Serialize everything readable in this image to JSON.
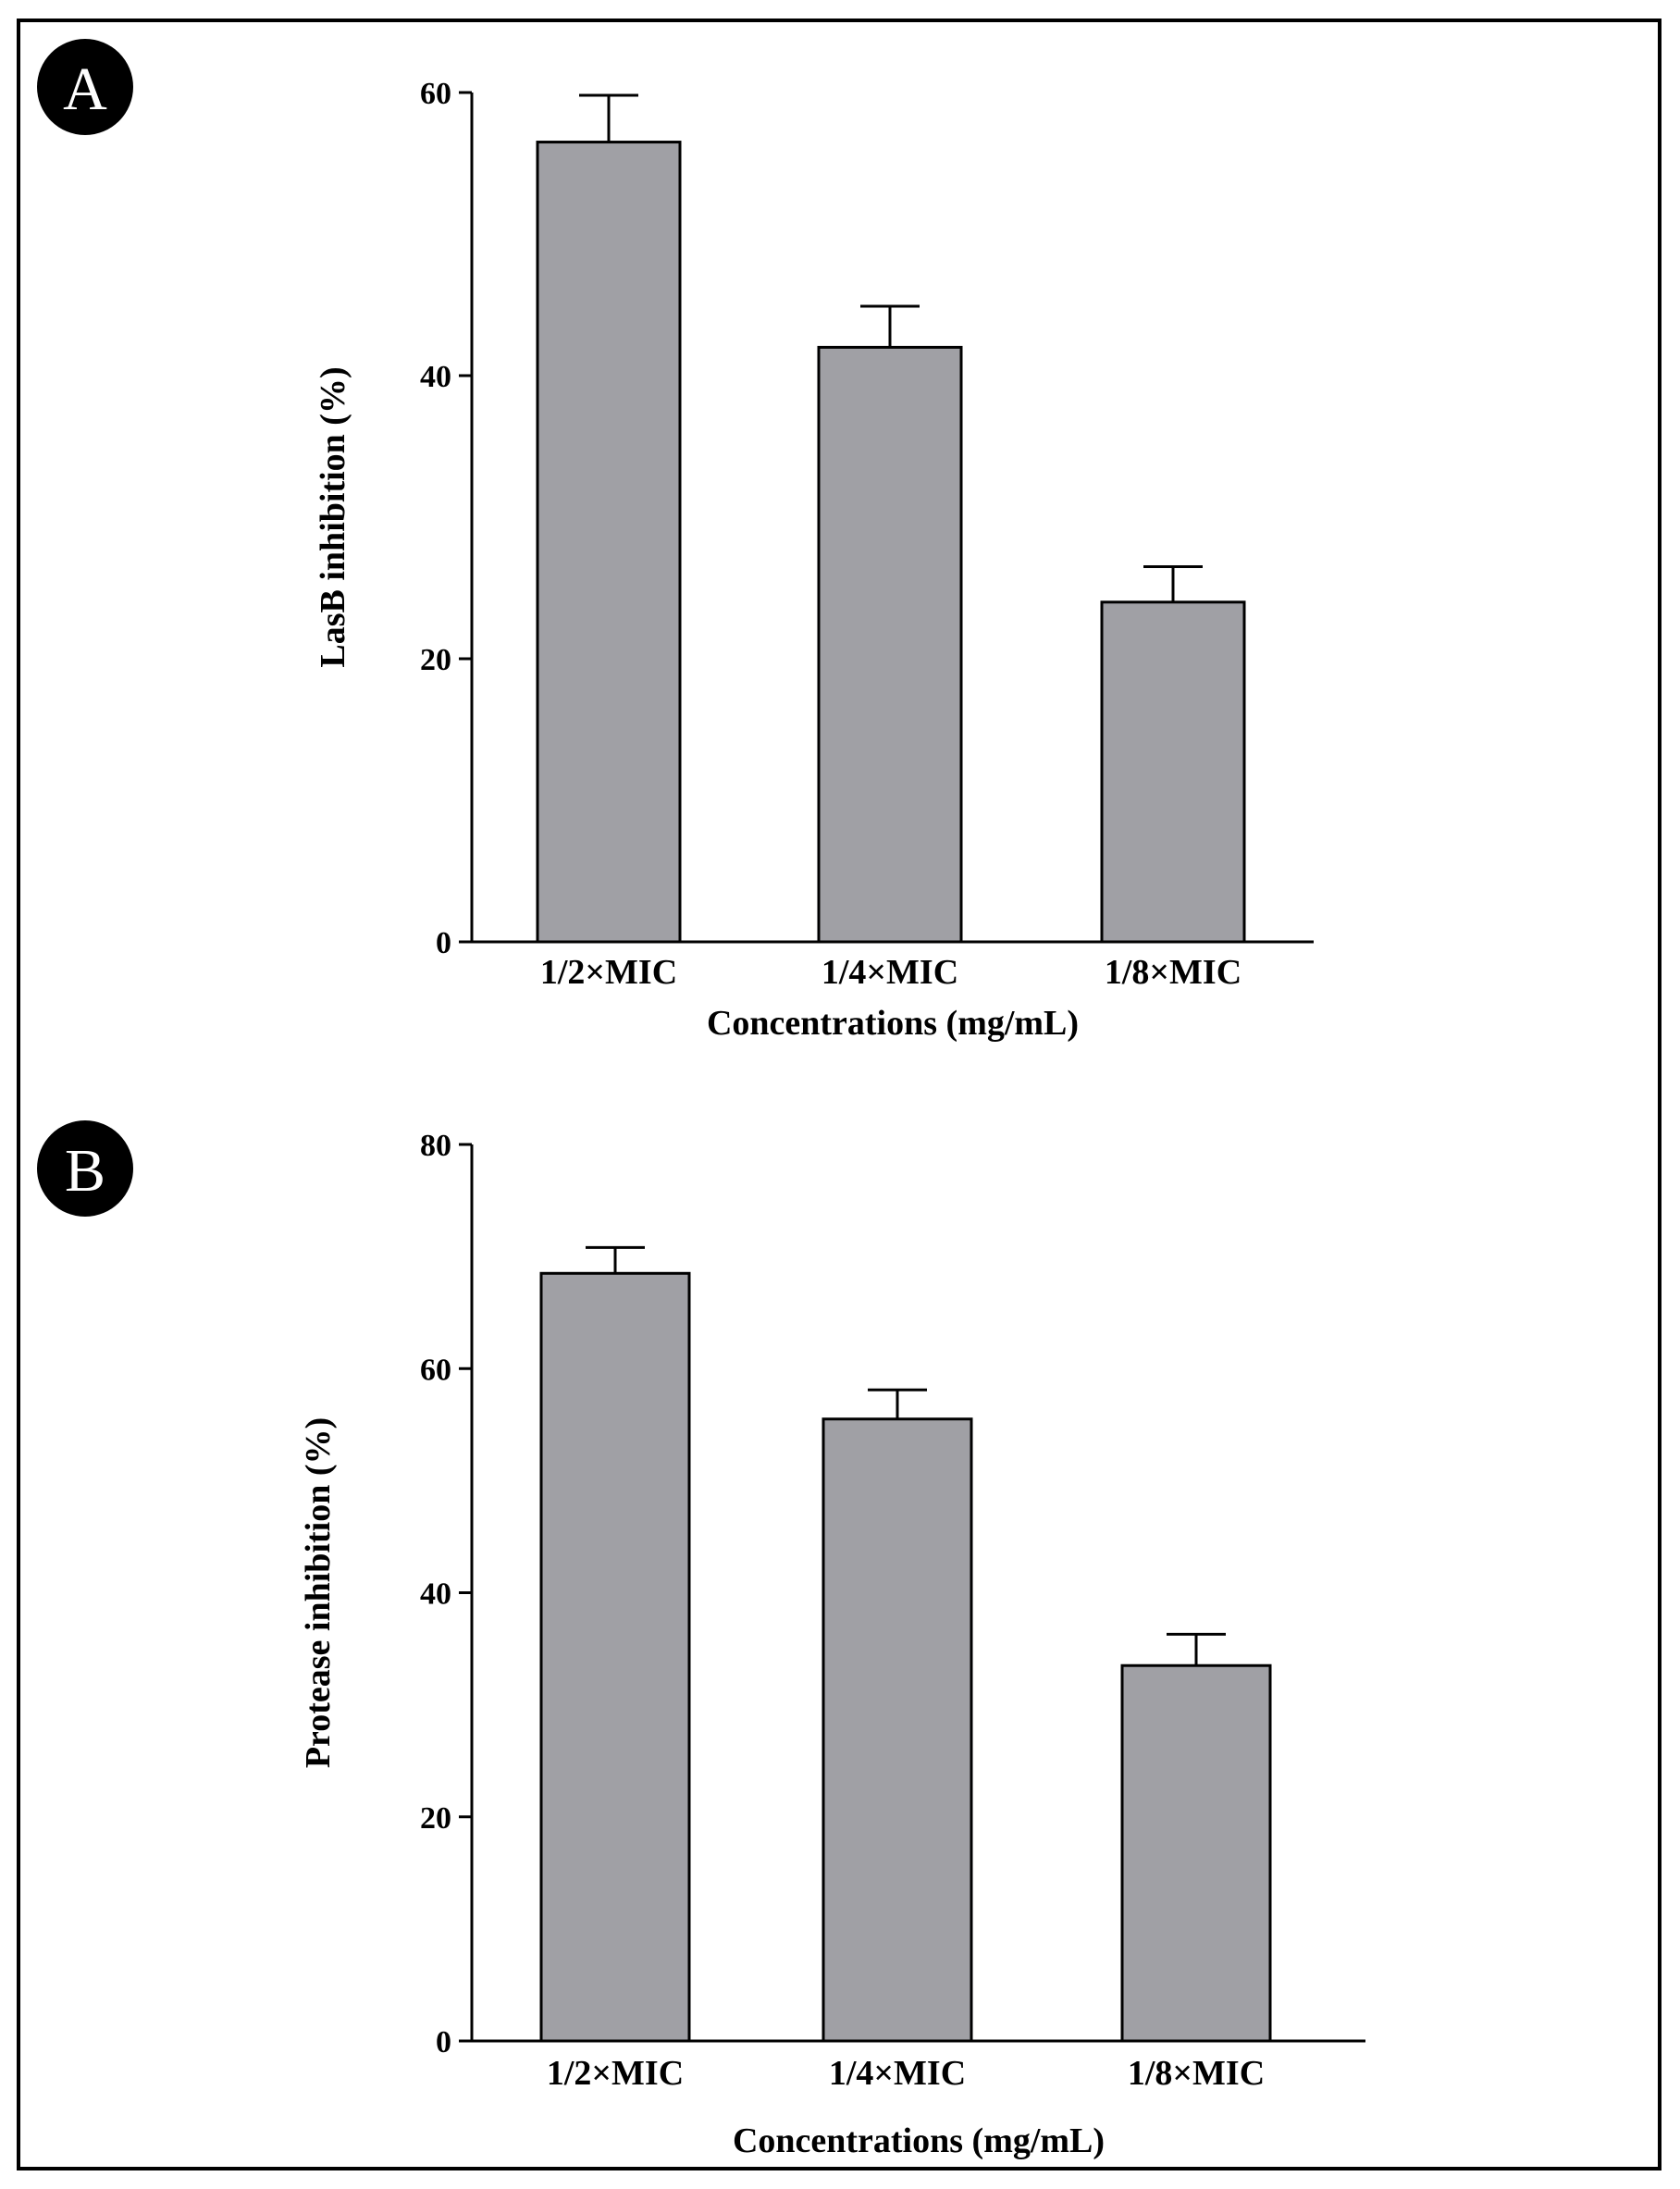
{
  "colors": {
    "bar_fill": "#a0a0a5",
    "bar_stroke": "#000000",
    "frame": "#000000",
    "badge": "#000000",
    "badge_text": "#ffffff"
  },
  "chart_data": [
    {
      "panel": "A",
      "type": "bar",
      "categories": [
        "1/2×MIC",
        "1/4×MIC",
        "1/8×MIC"
      ],
      "values": [
        56.5,
        42.0,
        24.0
      ],
      "errors": [
        3.3,
        2.9,
        2.5
      ],
      "xlabel": "Concentrations (mg/mL)",
      "ylabel": "LasB inhibition (%)",
      "ylim": [
        0,
        60
      ],
      "yticks": [
        0,
        20,
        40,
        60
      ],
      "grid": false,
      "legend": "none"
    },
    {
      "panel": "B",
      "type": "bar",
      "categories": [
        "1/2×MIC",
        "1/4×MIC",
        "1/8×MIC"
      ],
      "values": [
        68.5,
        55.5,
        33.5
      ],
      "errors": [
        2.3,
        2.6,
        2.8
      ],
      "xlabel": "Concentrations (mg/mL)",
      "ylabel": "Protease inhibition (%)",
      "ylim": [
        0,
        80
      ],
      "yticks": [
        0,
        20,
        40,
        60,
        80
      ],
      "grid": false,
      "legend": "none"
    }
  ]
}
